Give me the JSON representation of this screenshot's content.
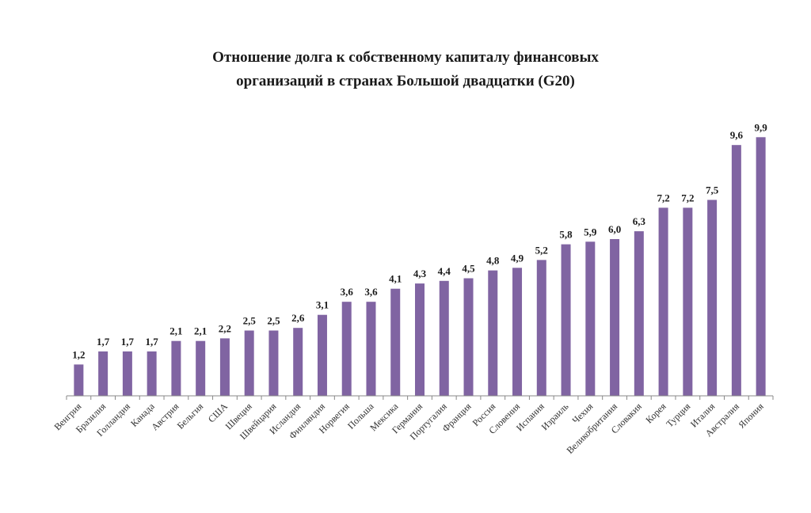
{
  "title_lines": [
    "Отношение долга к собственному капиталу финансовых",
    "организаций в странах Большой двадцатки (G20)"
  ],
  "chart_data": {
    "type": "bar",
    "title": "Отношение долга к собственному капиталу финансовых организаций в странах Большой двадцатки (G20)",
    "xlabel": "",
    "ylabel": "",
    "categories": [
      "Венгрия",
      "Бразилия",
      "Голландия",
      "Канада",
      "Австрия",
      "Бельгия",
      "США",
      "Швеция",
      "Швейцария",
      "Исландия",
      "Финляндия",
      "Норвегия",
      "Польша",
      "Мексика",
      "Германия",
      "Португалия",
      "Франция",
      "Россия",
      "Словения",
      "Испания",
      "Израиль",
      "Чехия",
      "Великобритания",
      "Словакия",
      "Корея",
      "Турция",
      "Италия",
      "Австралия",
      "Япония"
    ],
    "values": [
      1.2,
      1.7,
      1.7,
      1.7,
      2.1,
      2.1,
      2.2,
      2.5,
      2.5,
      2.6,
      3.1,
      3.6,
      3.6,
      4.1,
      4.3,
      4.4,
      4.5,
      4.8,
      4.9,
      5.2,
      5.8,
      5.9,
      6.0,
      6.3,
      7.2,
      7.2,
      7.5,
      9.6,
      9.9
    ],
    "value_labels": [
      "1,2",
      "1,7",
      "1,7",
      "1,7",
      "2,1",
      "2,1",
      "2,2",
      "2,5",
      "2,5",
      "2,6",
      "3,1",
      "3,6",
      "3,6",
      "4,1",
      "4,3",
      "4,4",
      "4,5",
      "4,8",
      "4,9",
      "5,2",
      "5,8",
      "5,9",
      "6,0",
      "6,3",
      "7,2",
      "7,2",
      "7,5",
      "9,6",
      "9,9"
    ],
    "ylim": [
      0,
      10
    ],
    "grid": false,
    "legend": "none",
    "bar_color": "#8064A2"
  }
}
